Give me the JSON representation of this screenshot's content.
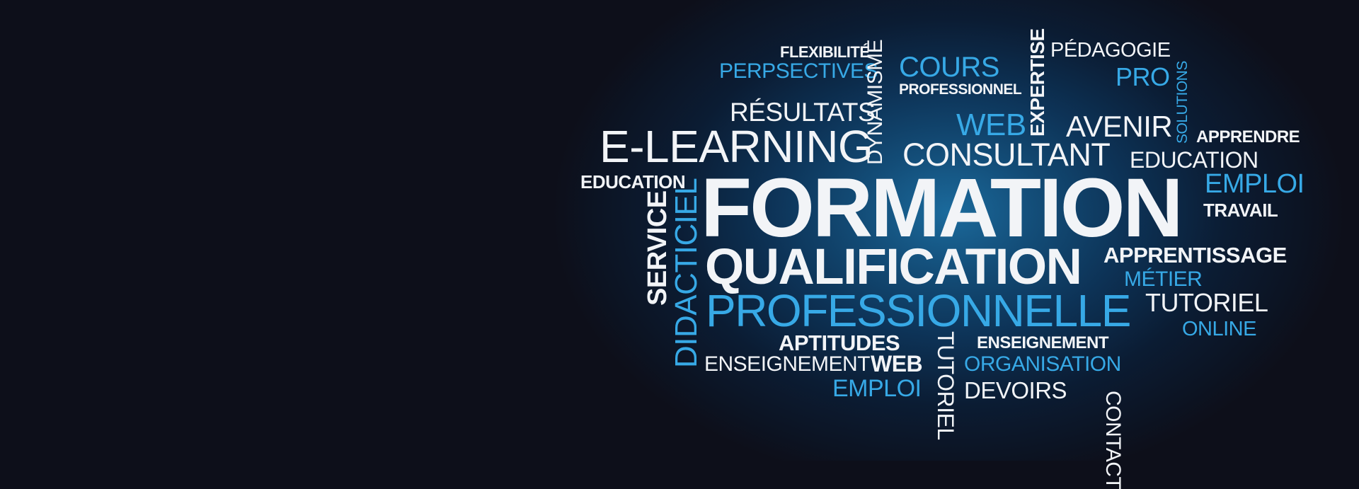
{
  "words": {
    "flexibilite": "FLEXIBILITÉ",
    "perspectives": "PERPSECTIVES",
    "dynamisme": "DYNAMISME",
    "cours": "COURS",
    "professionnel": "PROFESSIONNEL",
    "expertise": "EXPERTISE",
    "pedagogie": "PÉDAGOGIE",
    "pro": "PRO",
    "solutions": "SOLUTIONS",
    "resultats": "RÉSULTATS",
    "web_top": "WEB",
    "avenir": "AVENIR",
    "apprendre": "APPRENDRE",
    "elearning": "E-LEARNING",
    "consultant": "CONSULTANT",
    "education_right": "EDUCATION",
    "education_left": "EDUCATION",
    "formation": "FORMATION",
    "emploi_right": "EMPLOI",
    "travail": "TRAVAIL",
    "service": "SERVICE",
    "didacticiel": "DIDACTICIEL",
    "qualification": "QUALIFICATION",
    "apprentissage": "APPRENTISSAGE",
    "metier": "MÉTIER",
    "professionnelle": "PROFESSIONNELLE",
    "contact": "CONTACT",
    "tutoriel_right": "TUTORIEL",
    "online": "ONLINE",
    "aptitudes": "APTITUDES",
    "tutoriel_vertical": "TUTORIEL",
    "enseignement_bold": "ENSEIGNEMENT",
    "enseignement_thin": "ENSEIGNEMENT",
    "web_bottom": "WEB",
    "organisation": "ORGANISATION",
    "emploi_bottom": "EMPLOI",
    "devoirs": "DEVOIRS"
  },
  "colors": {
    "background": "#0d0f1a",
    "glow": "#1b6a9c",
    "white_text": "#f2f4f7",
    "blue_text": "#37a9e6"
  }
}
